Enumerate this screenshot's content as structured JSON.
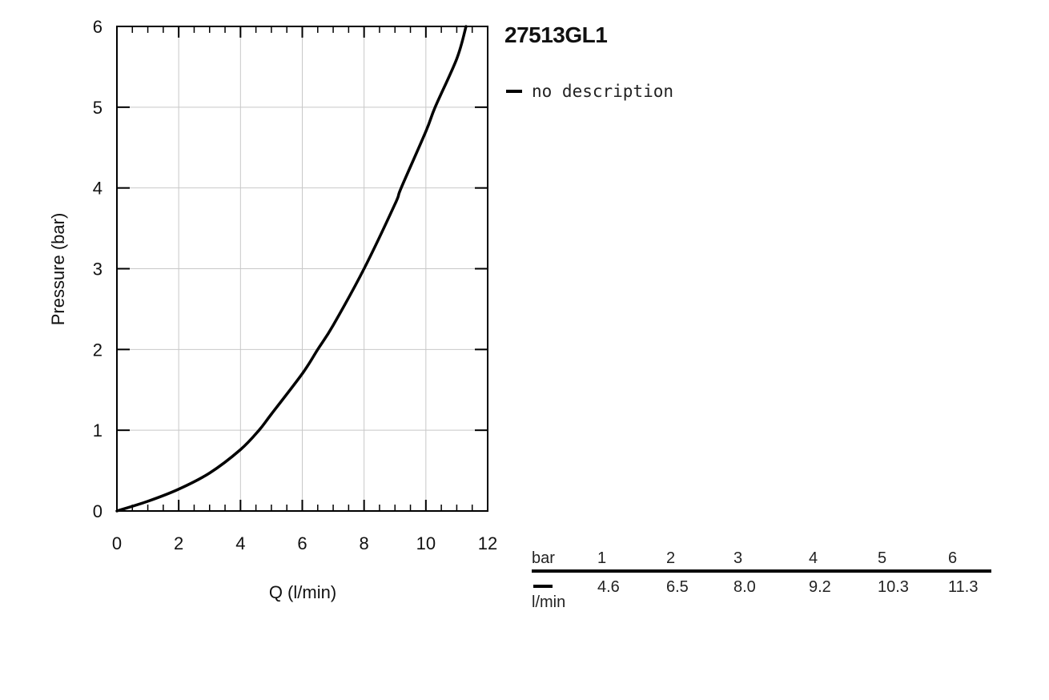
{
  "title": "27513GL1",
  "legend": {
    "entries": [
      {
        "label": "no description",
        "color": "#000000"
      }
    ]
  },
  "chart_data": {
    "type": "line",
    "title": "27513GL1",
    "xlabel": "Q (l/min)",
    "ylabel": "Pressure (bar)",
    "xlim": [
      0,
      12
    ],
    "ylim": [
      0,
      6
    ],
    "x_ticks": [
      "0",
      "2",
      "4",
      "6",
      "8",
      "10",
      "12"
    ],
    "y_ticks": [
      "0",
      "1",
      "2",
      "3",
      "4",
      "5",
      "6"
    ],
    "grid": true,
    "legend_position": "right",
    "series": [
      {
        "name": "no description",
        "color": "#000000",
        "x": [
          0,
          1,
          2,
          3,
          4,
          4.6,
          5,
          6,
          6.5,
          7,
          8,
          9,
          9.2,
          10,
          10.3,
          11,
          11.3
        ],
        "y": [
          0,
          0.12,
          0.27,
          0.47,
          0.76,
          1.0,
          1.2,
          1.7,
          2.0,
          2.3,
          3.0,
          3.8,
          4.0,
          4.7,
          5.0,
          5.6,
          6.0
        ]
      }
    ]
  },
  "table": {
    "row_header_top": "bar",
    "row_header_bottom": "l/min",
    "columns": [
      {
        "bar": "1",
        "flow": "4.6"
      },
      {
        "bar": "2",
        "flow": "6.5"
      },
      {
        "bar": "3",
        "flow": "8.0"
      },
      {
        "bar": "4",
        "flow": "9.2"
      },
      {
        "bar": "5",
        "flow": "10.3"
      },
      {
        "bar": "6",
        "flow": "11.3"
      }
    ]
  }
}
